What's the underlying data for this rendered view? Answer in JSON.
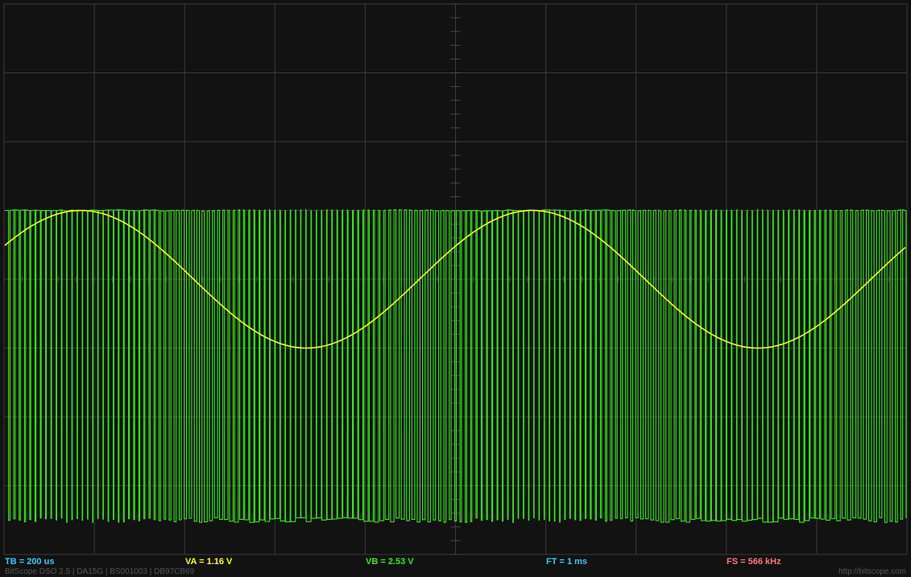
{
  "readouts": {
    "tb": "TB = 200 us",
    "va": "VA = 1.16 V",
    "vb": "VB = 2.53 V",
    "ft": "FT = 1 ms",
    "fs": "FS = 566 kHz"
  },
  "footer": {
    "device_info": "BitScope DSO 2.5 | DA15G | BS001003 | DB97CB69",
    "url": "http://bitscope.com"
  },
  "colors": {
    "background": "#121212",
    "grid": "#3a3a3a",
    "channel_a": "#ffff00",
    "channel_b": "#33ee11",
    "tb_text": "#33ccff",
    "va_text": "#ffff00",
    "vb_text": "#33ee11",
    "ft_text": "#33ccff",
    "fs_text": "#ff7777"
  },
  "chart_data": {
    "type": "line",
    "grid": true,
    "timebase": "200 us",
    "series": [
      {
        "channel": "A",
        "waveform": "sine",
        "period_ms": 1.0,
        "peak_div": 1.0,
        "trough_div": -1.0,
        "phase_peak_ms": [
          0.17,
          1.17,
          2.17
        ]
      },
      {
        "channel": "B",
        "waveform": "PWM",
        "carrier_khz": 87,
        "high_div": 1.0,
        "low_div": -3.5,
        "modulation_period_ms": 1.0
      }
    ]
  }
}
